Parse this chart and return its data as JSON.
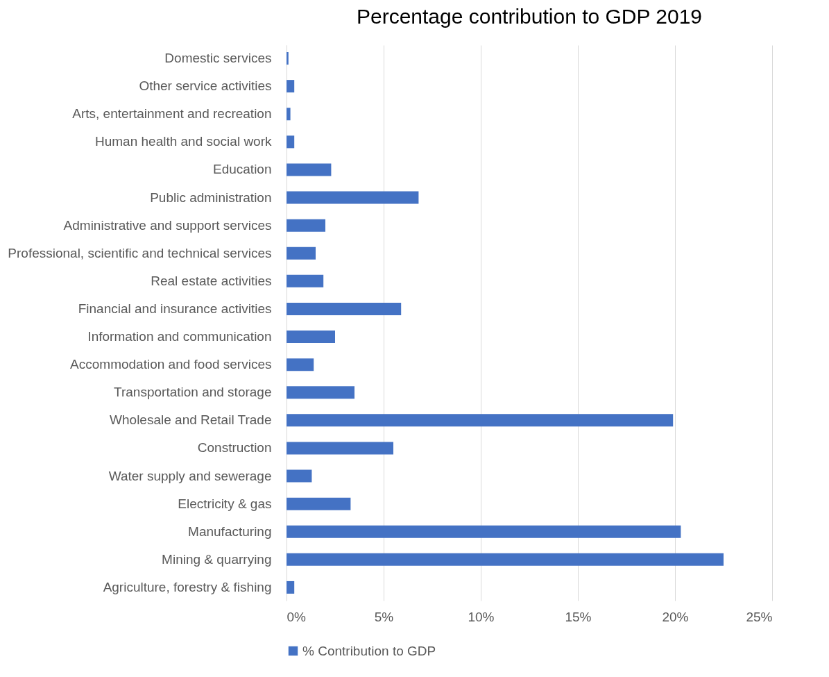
{
  "chart_data": {
    "type": "bar",
    "orientation": "horizontal",
    "title": "Percentage contribution to GDP 2019",
    "categories": [
      "Domestic services",
      "Other service activities",
      "Arts, entertainment and recreation",
      "Human health and social work",
      "Education",
      "Public administration",
      "Administrative and support services",
      "Professional, scientific and technical services",
      "Real estate activities",
      "Financial and insurance activities",
      "Information and communication",
      "Accommodation and food services",
      "Transportation and storage",
      "Wholesale and Retail Trade",
      "Construction",
      "Water supply and sewerage",
      "Electricity & gas",
      "Manufacturing",
      "Mining & quarrying",
      "Agriculture, forestry & fishing"
    ],
    "series": [
      {
        "name": "% Contribution to GDP",
        "color": "#4472c4",
        "values": [
          0.1,
          0.4,
          0.2,
          0.4,
          2.3,
          6.8,
          2.0,
          1.5,
          1.9,
          5.9,
          2.5,
          1.4,
          3.5,
          19.9,
          5.5,
          1.3,
          3.3,
          20.3,
          22.5,
          0.4
        ]
      }
    ],
    "xlim": [
      0,
      25
    ],
    "xticks": [
      {
        "value": 0,
        "label": "0%"
      },
      {
        "value": 5,
        "label": "5%"
      },
      {
        "value": 10,
        "label": "10%"
      },
      {
        "value": 15,
        "label": "15%"
      },
      {
        "value": 20,
        "label": "20%"
      },
      {
        "value": 25,
        "label": "25%"
      }
    ],
    "grid": "x",
    "legend": "bottom"
  }
}
